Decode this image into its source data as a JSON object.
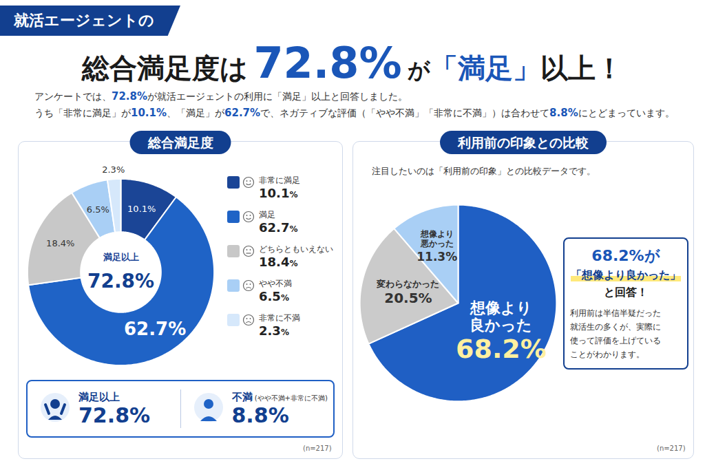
{
  "header": {
    "tag": "就活エージェントの",
    "headline": [
      {
        "text": "総合満足度は"
      },
      {
        "text": "72.8%",
        "emphasis": true
      },
      {
        "text": "が"
      },
      {
        "text": "「満足」",
        "emphasis": true
      },
      {
        "text": "以上！"
      }
    ],
    "intro": [
      [
        {
          "text": "アンケートでは、"
        },
        {
          "text": "72.8%",
          "emphasis": true
        },
        {
          "text": "が就活エージェントの利用に「満足」以上と回答しました。"
        }
      ],
      [
        {
          "text": "うち「非常に満足」が"
        },
        {
          "text": "10.1%",
          "emphasis": true
        },
        {
          "text": "、「満足」が"
        },
        {
          "text": "62.7%",
          "emphasis": true
        },
        {
          "text": "で、ネガティブな評価（「やや不満」「非常に不満」）は合わせて"
        },
        {
          "text": "8.8%",
          "emphasis": true
        },
        {
          "text": "にとどまっています。"
        }
      ]
    ]
  },
  "chart_data": [
    {
      "type": "donut",
      "title": "総合満足度",
      "categories": [
        "非常に満足",
        "満足",
        "どちらともいえない",
        "やや不満",
        "非常に不満"
      ],
      "values": [
        10.1,
        62.7,
        18.4,
        6.5,
        2.3
      ],
      "value_labels": [
        "10.1%",
        "62.7%",
        "18.4%",
        "6.5%",
        "2.3%"
      ],
      "colors": [
        "#1b4596",
        "#1f63c6",
        "#c8c8c8",
        "#a9cff5",
        "#d6e8fb"
      ],
      "data_labels": true,
      "tick_labels": false,
      "legend": "right",
      "center_label": "満足以上",
      "center_value": "72.8%",
      "summary": [
        {
          "label": "満足以上",
          "value": "72.8%"
        },
        {
          "label": "不満",
          "note": "(やや不満+非常に不満)",
          "value": "8.8%"
        }
      ],
      "note": "(n=217)"
    },
    {
      "type": "pie",
      "title": "利用前の印象との比較",
      "subtitle": "注目したいのは「利用前の印象」との比較データです。",
      "categories": [
        "想像より良かった",
        "変わらなかった",
        "想像より悪かった"
      ],
      "values": [
        68.2,
        20.5,
        11.3
      ],
      "value_labels": [
        "68.2%",
        "20.5%",
        "11.3%"
      ],
      "colors": [
        "#1f5fc4",
        "#cbcbcb",
        "#a9cff5"
      ],
      "data_labels": true,
      "tick_labels": false,
      "callout": {
        "lines": [
          "68.2%が",
          "「想像より良かった」",
          "と回答！"
        ],
        "text": [
          "利用前は半信半疑だった",
          "就活生の多くが、実際に",
          "使って評価を上げている",
          "ことがわかります。"
        ]
      },
      "note": "(n=217)"
    }
  ]
}
